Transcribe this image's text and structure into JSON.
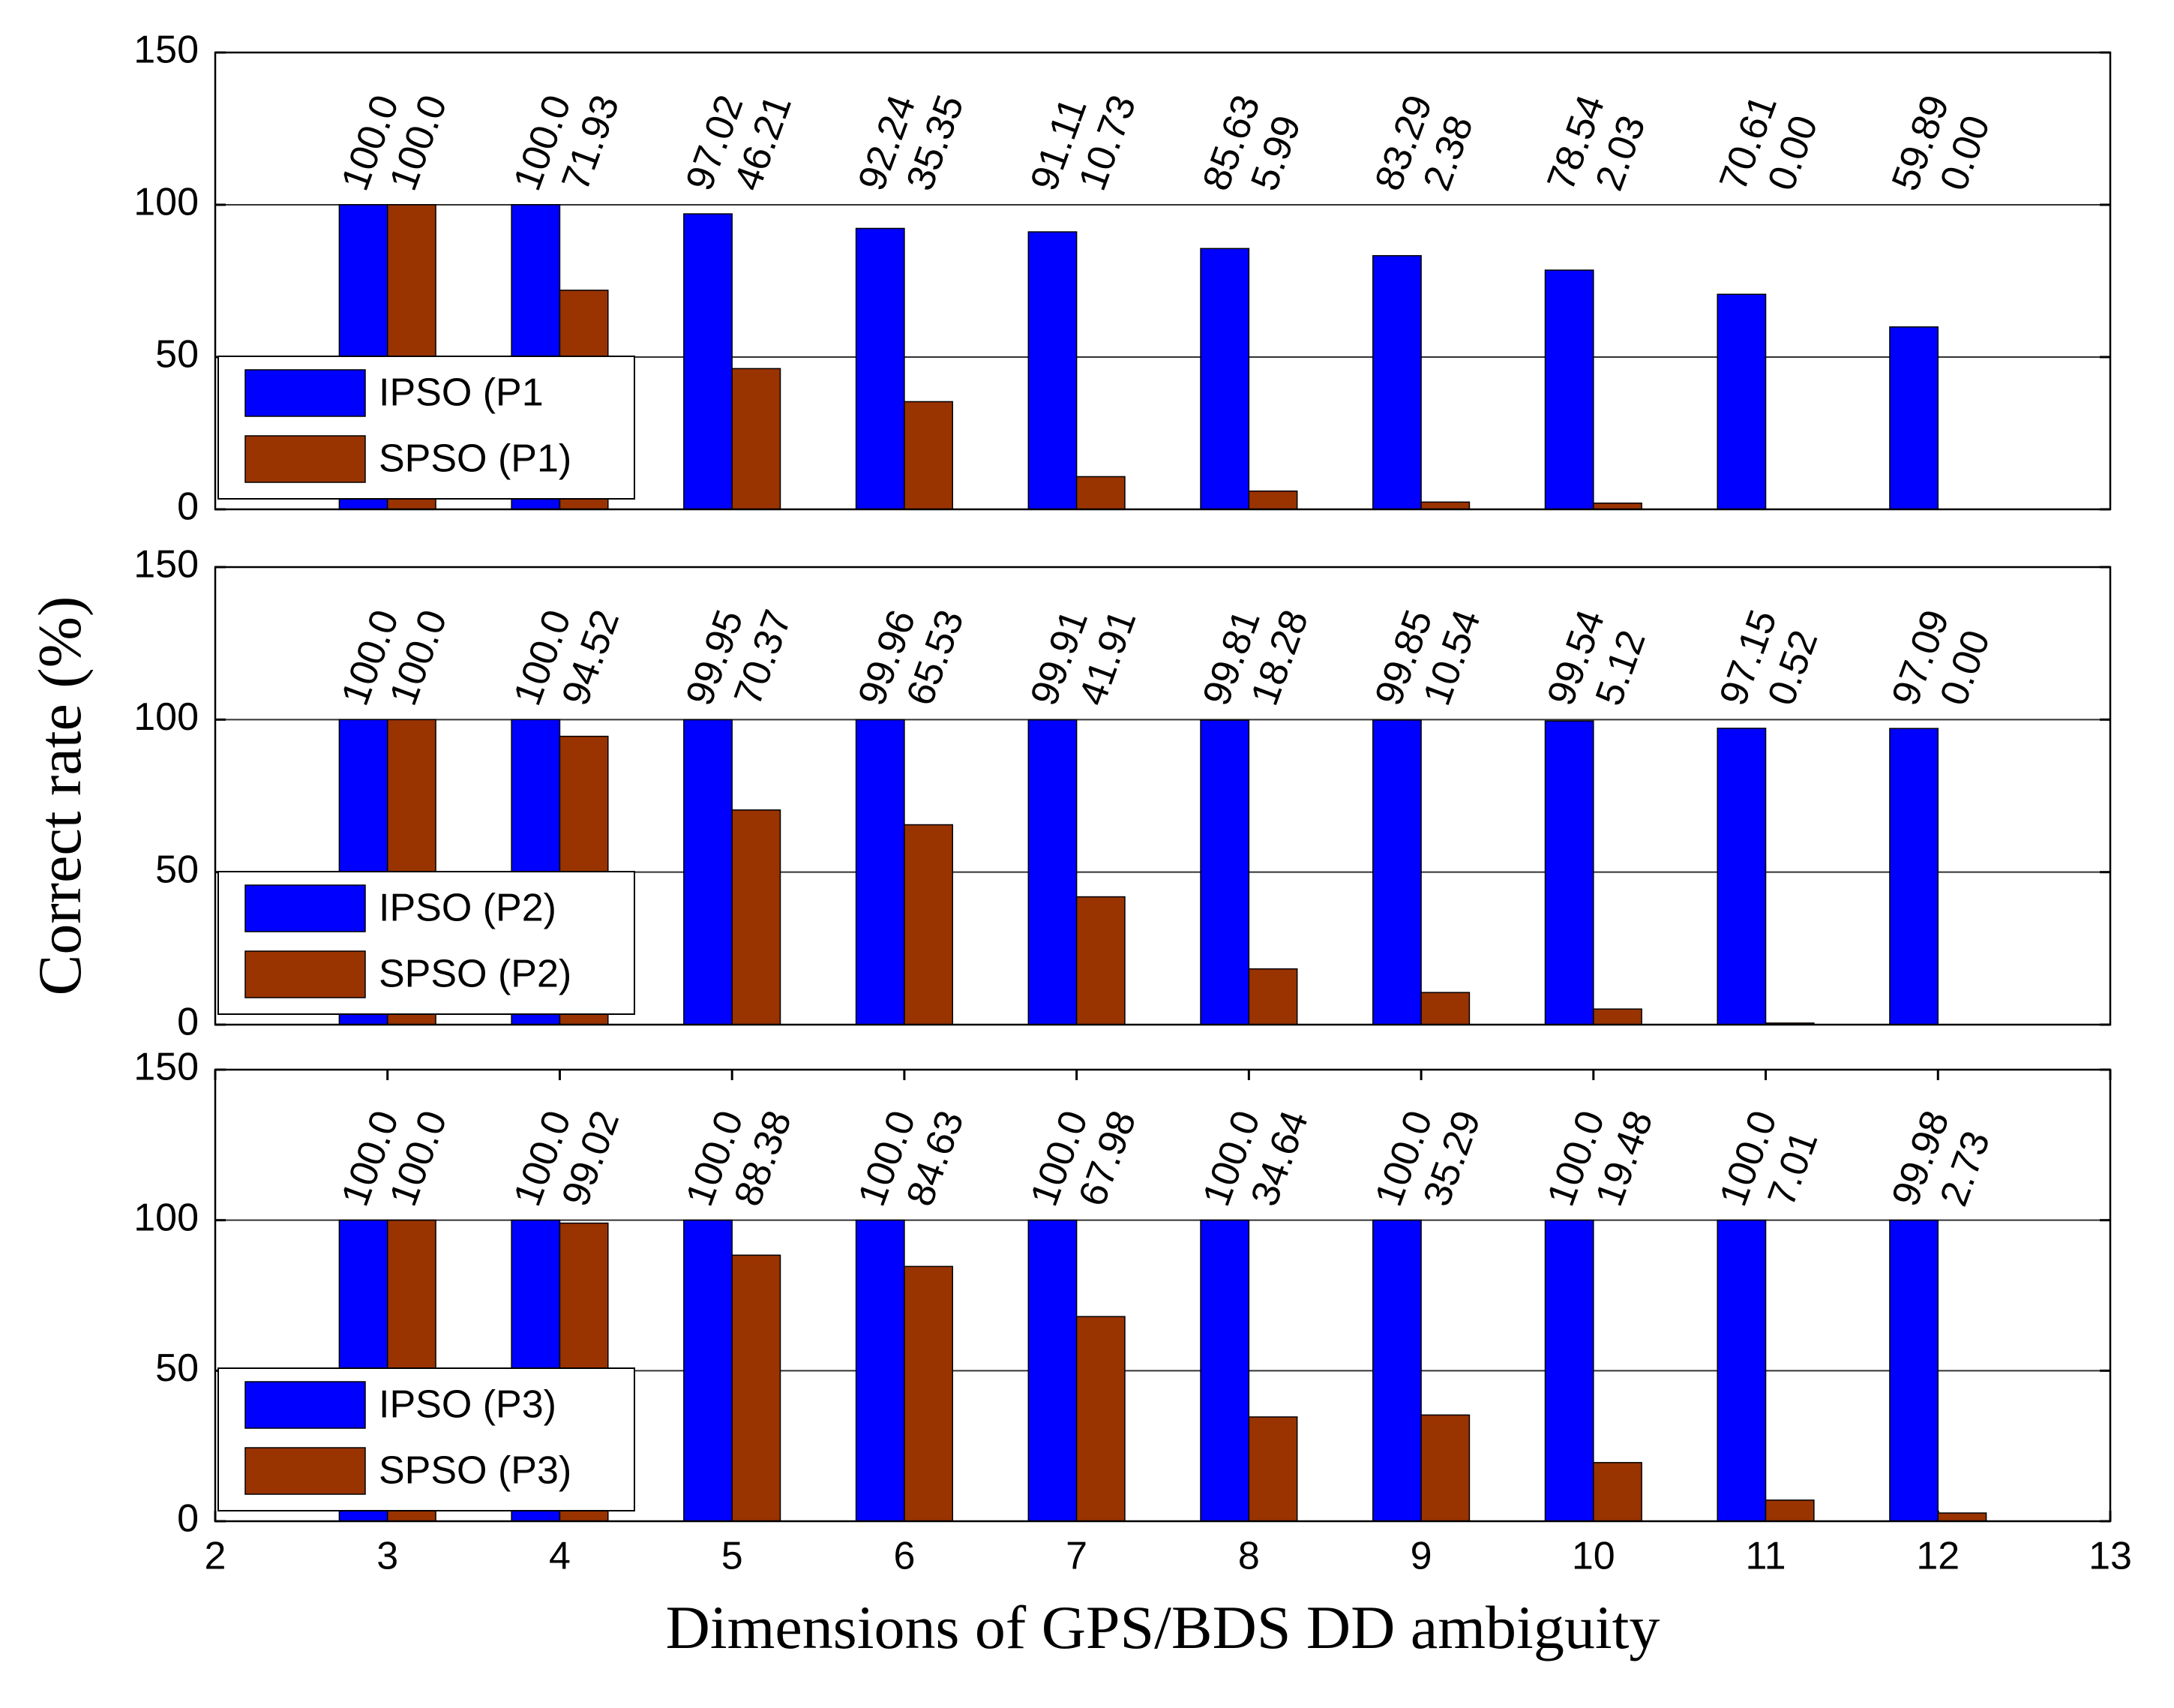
{
  "chart_data": [
    {
      "type": "bar",
      "xlim": [
        2,
        13
      ],
      "ylim": [
        0,
        150
      ],
      "yticks": [
        0,
        50,
        100,
        150
      ],
      "grid": true,
      "legend": "lower left",
      "x": [
        3,
        4,
        5,
        6,
        7,
        8,
        9,
        10,
        11,
        12
      ],
      "series": [
        {
          "name": "IPSO (P1",
          "color": "#0000ff",
          "values": [
            100,
            100,
            97.02,
            92.24,
            91.11,
            85.63,
            83.29,
            78.54,
            70.61,
            59.89
          ],
          "value_labels": [
            "100.0",
            "100.0",
            "97.02",
            "92.24",
            "91.11",
            "85.63",
            "83.29",
            "78.54",
            "70.61",
            "59.89"
          ]
        },
        {
          "name": "SPSO (P1)",
          "color": "#993300",
          "values": [
            100,
            71.93,
            46.21,
            35.35,
            10.73,
            5.99,
            2.38,
            2.03,
            0,
            0
          ],
          "value_labels": [
            "100.0",
            "71.93",
            "46.21",
            "35.35",
            "10.73",
            "5.99",
            "2.38",
            "2.03",
            "0.00",
            "0.00"
          ]
        }
      ]
    },
    {
      "type": "bar",
      "xlim": [
        2,
        13
      ],
      "ylim": [
        0,
        150
      ],
      "yticks": [
        0,
        50,
        100,
        150
      ],
      "grid": true,
      "legend": "lower left",
      "ylabel": "Correct rate (%)",
      "x": [
        3,
        4,
        5,
        6,
        7,
        8,
        9,
        10,
        11,
        12
      ],
      "series": [
        {
          "name": "IPSO (P2)",
          "color": "#0000ff",
          "values": [
            100,
            100,
            99.95,
            99.96,
            99.91,
            99.81,
            99.85,
            99.54,
            97.15,
            97.09
          ],
          "value_labels": [
            "100.0",
            "100.0",
            "99.95",
            "99.96",
            "99.91",
            "99.81",
            "99.85",
            "99.54",
            "97.15",
            "97.09"
          ]
        },
        {
          "name": "SPSO (P2)",
          "color": "#993300",
          "values": [
            100,
            94.52,
            70.37,
            65.53,
            41.91,
            18.28,
            10.54,
            5.12,
            0.52,
            0
          ],
          "value_labels": [
            "100.0",
            "94.52",
            "70.37",
            "65.53",
            "41.91",
            "18.28",
            "10.54",
            "5.12",
            "0.52",
            "0.00"
          ]
        }
      ]
    },
    {
      "type": "bar",
      "xlim": [
        2,
        13
      ],
      "xticks": [
        2,
        3,
        4,
        5,
        6,
        7,
        8,
        9,
        10,
        11,
        12,
        13
      ],
      "ylim": [
        0,
        150
      ],
      "yticks": [
        0,
        50,
        100,
        150
      ],
      "grid": true,
      "legend": "lower left",
      "xlabel": "Dimensions of GPS/BDS DD ambiguity",
      "x": [
        3,
        4,
        5,
        6,
        7,
        8,
        9,
        10,
        11,
        12
      ],
      "series": [
        {
          "name": "IPSO (P3)",
          "color": "#0000ff",
          "values": [
            100,
            100,
            100,
            100,
            100,
            100,
            100,
            100,
            100,
            99.98
          ],
          "value_labels": [
            "100.0",
            "100.0",
            "100.0",
            "100.0",
            "100.0",
            "100.0",
            "100.0",
            "100.0",
            "100.0",
            "99.98"
          ]
        },
        {
          "name": "SPSO (P3)",
          "color": "#993300",
          "values": [
            100,
            99.02,
            88.38,
            84.63,
            67.98,
            34.64,
            35.29,
            19.48,
            7.01,
            2.73
          ],
          "value_labels": [
            "100.0",
            "99.02",
            "88.38",
            "84.63",
            "67.98",
            "34.64",
            "35.29",
            "19.48",
            "7.01",
            "2.73"
          ]
        }
      ]
    }
  ]
}
